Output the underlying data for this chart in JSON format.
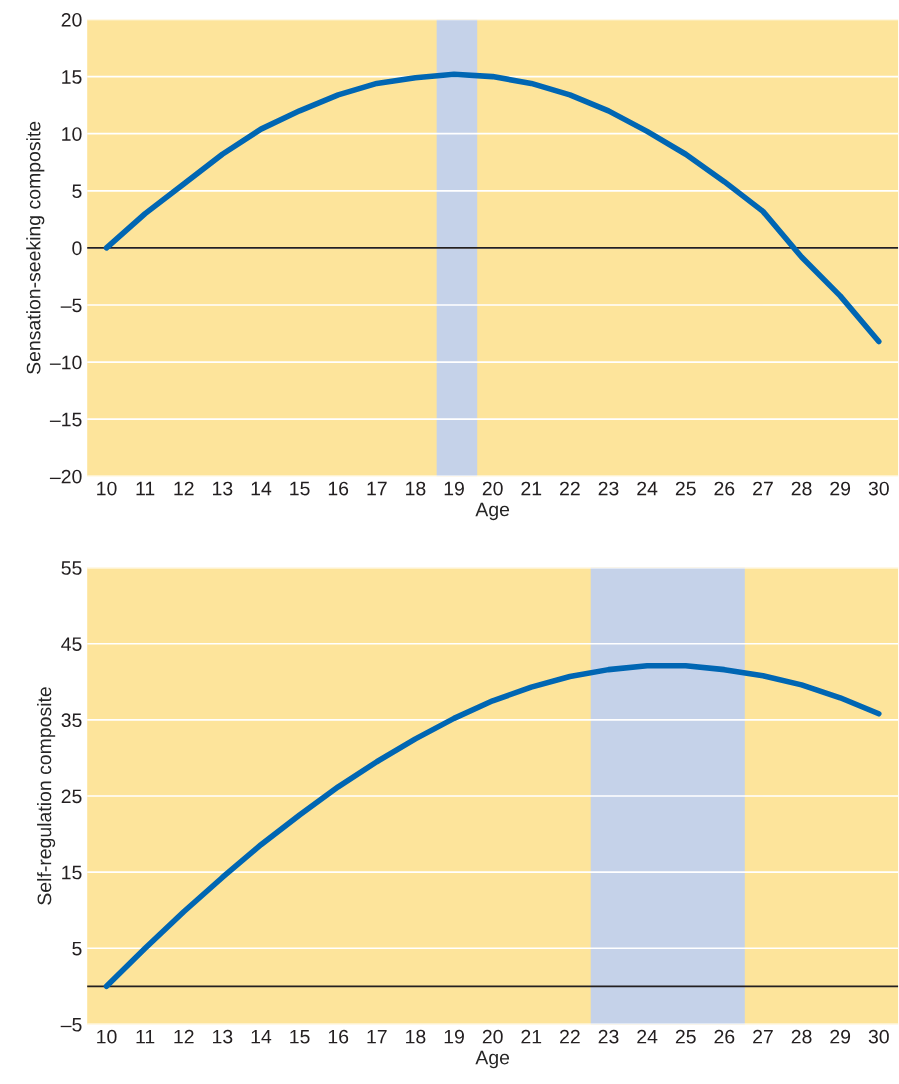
{
  "chart_data": [
    {
      "type": "line",
      "xlabel": "Age",
      "ylabel": "Sensation-seeking composite",
      "x": [
        10,
        11,
        12,
        13,
        14,
        15,
        16,
        17,
        18,
        19,
        20,
        21,
        22,
        23,
        24,
        25,
        26,
        27,
        28,
        29,
        30
      ],
      "series": [
        {
          "color": "#0066b3",
          "values": [
            0,
            3.0,
            5.6,
            8.2,
            10.4,
            12.0,
            13.4,
            14.4,
            14.9,
            15.2,
            15.0,
            14.4,
            13.4,
            12.0,
            10.2,
            8.2,
            5.8,
            3.2,
            -0.8,
            -4.2,
            -8.2
          ]
        }
      ],
      "xlim": [
        9.5,
        30.5
      ],
      "xticks": [
        10,
        11,
        12,
        13,
        14,
        15,
        16,
        17,
        18,
        19,
        20,
        21,
        22,
        23,
        24,
        25,
        26,
        27,
        28,
        29,
        30
      ],
      "ylim": [
        -20,
        20
      ],
      "yticks": [
        {
          "value": -20,
          "label": "–20"
        },
        {
          "value": -15,
          "label": "–15"
        },
        {
          "value": -10,
          "label": "–10"
        },
        {
          "value": -5,
          "label": "–5"
        },
        0,
        5,
        10,
        15,
        20
      ],
      "bands": [
        {
          "axis": "x",
          "from": 18.55,
          "to": 19.6,
          "color": "#c5d2e9"
        }
      ],
      "ref_lines": [
        {
          "axis": "y",
          "value": 0,
          "color": "#231f20"
        }
      ],
      "grid": "y",
      "legend": false
    },
    {
      "type": "line",
      "xlabel": "Age",
      "ylabel": "Self-regulation composite",
      "x": [
        10,
        11,
        12,
        13,
        14,
        15,
        16,
        17,
        18,
        19,
        20,
        21,
        22,
        23,
        24,
        25,
        26,
        27,
        28,
        29,
        30
      ],
      "series": [
        {
          "color": "#0066b3",
          "values": [
            0,
            5.0,
            9.8,
            14.3,
            18.6,
            22.5,
            26.2,
            29.5,
            32.5,
            35.2,
            37.5,
            39.3,
            40.7,
            41.6,
            42.1,
            42.1,
            41.6,
            40.8,
            39.6,
            37.9,
            35.8
          ]
        }
      ],
      "xlim": [
        9.5,
        30.5
      ],
      "xticks": [
        10,
        11,
        12,
        13,
        14,
        15,
        16,
        17,
        18,
        19,
        20,
        21,
        22,
        23,
        24,
        25,
        26,
        27,
        28,
        29,
        30
      ],
      "ylim": [
        -5,
        55
      ],
      "yticks": [
        {
          "value": -5,
          "label": "–5"
        },
        5,
        15,
        25,
        35,
        45,
        55
      ],
      "bands": [
        {
          "axis": "x",
          "from": 22.54,
          "to": 26.53,
          "color": "#c5d2e9"
        }
      ],
      "ref_lines": [
        {
          "axis": "y",
          "value": 0,
          "color": "#231f20"
        }
      ],
      "grid": "y",
      "legend": false
    }
  ]
}
